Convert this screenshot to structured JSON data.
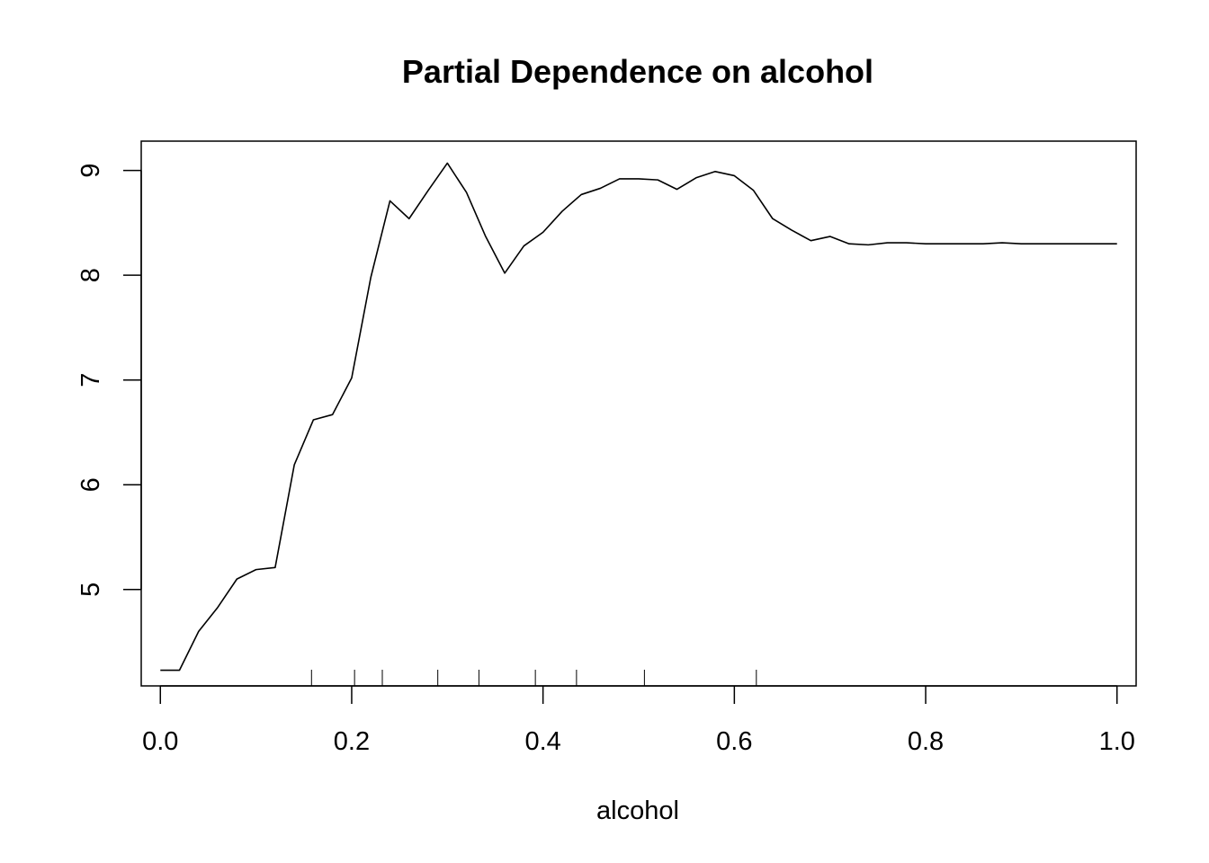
{
  "chart_data": {
    "type": "line",
    "title": "Partial Dependence on alcohol",
    "xlabel": "alcohol",
    "ylabel": "",
    "xlim": [
      -0.02,
      1.02
    ],
    "ylim": [
      4.08,
      9.28
    ],
    "x_ticks": [
      0.0,
      0.2,
      0.4,
      0.6,
      0.8,
      1.0
    ],
    "x_tick_labels": [
      "0.0",
      "0.2",
      "0.4",
      "0.6",
      "0.8",
      "1.0"
    ],
    "y_ticks": [
      5,
      6,
      7,
      8,
      9
    ],
    "y_tick_labels": [
      "5",
      "6",
      "7",
      "8",
      "9"
    ],
    "grid": false,
    "legend": "none",
    "line_color": "#000000",
    "series": [
      {
        "x": [
          0.0,
          0.02,
          0.04,
          0.06,
          0.08,
          0.1,
          0.12,
          0.14,
          0.16,
          0.18,
          0.2,
          0.22,
          0.24,
          0.26,
          0.28,
          0.3,
          0.32,
          0.34,
          0.36,
          0.38,
          0.4,
          0.42,
          0.44,
          0.46,
          0.48,
          0.5,
          0.52,
          0.54,
          0.56,
          0.58,
          0.6,
          0.62,
          0.64,
          0.66,
          0.68,
          0.7,
          0.72,
          0.74,
          0.76,
          0.78,
          0.8,
          0.82,
          0.84,
          0.86,
          0.88,
          0.9,
          0.92,
          0.94,
          0.96,
          0.98,
          1.0
        ],
        "y": [
          4.23,
          4.23,
          4.6,
          4.83,
          5.1,
          5.19,
          5.21,
          6.19,
          6.62,
          6.67,
          7.02,
          7.98,
          8.71,
          8.54,
          8.81,
          9.07,
          8.79,
          8.37,
          8.02,
          8.28,
          8.41,
          8.61,
          8.77,
          8.83,
          8.92,
          8.92,
          8.91,
          8.82,
          8.93,
          8.99,
          8.95,
          8.81,
          8.54,
          8.43,
          8.33,
          8.37,
          8.3,
          8.29,
          8.31,
          8.31,
          8.3,
          8.3,
          8.3,
          8.3,
          8.31,
          8.3,
          8.3,
          8.3,
          8.3,
          8.3,
          8.3
        ]
      }
    ],
    "rug": [
      0.158,
      0.203,
      0.232,
      0.29,
      0.333,
      0.392,
      0.435,
      0.506,
      0.623
    ]
  }
}
